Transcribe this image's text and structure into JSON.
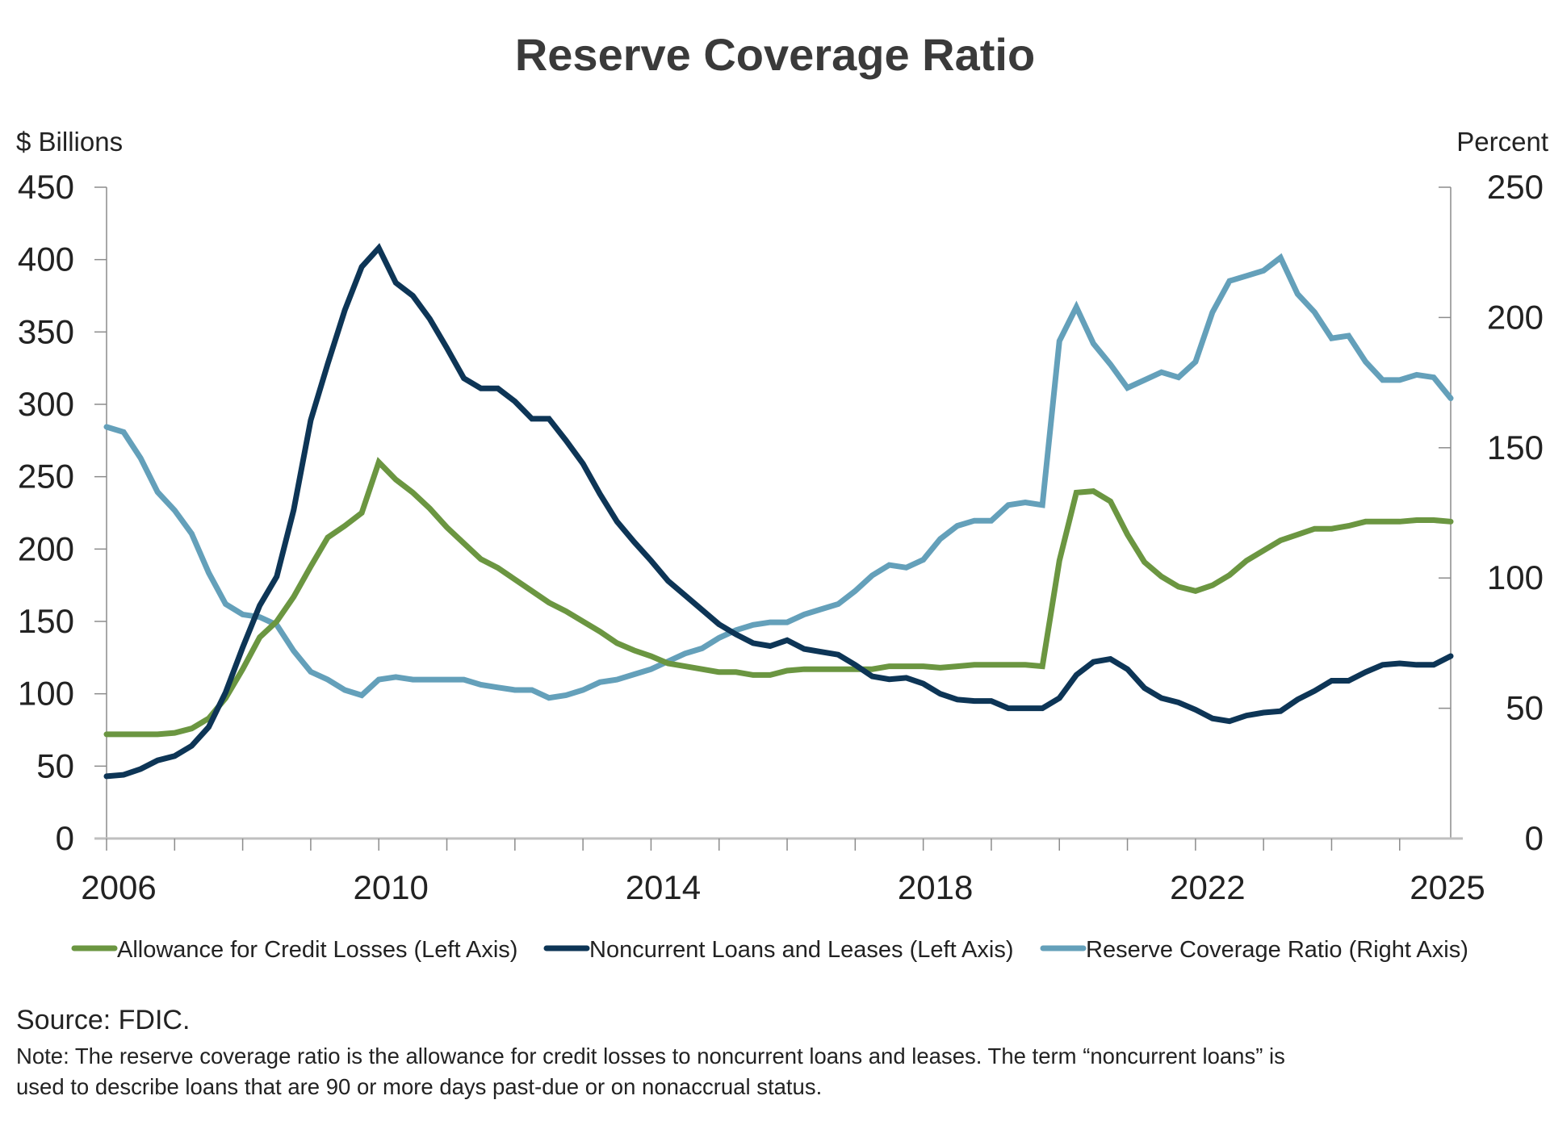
{
  "chart_data": {
    "type": "line",
    "title": "Reserve Coverage Ratio",
    "y_left_label": "$ Billions",
    "y_right_label": "Percent",
    "ylim_left": [
      0,
      450
    ],
    "ylim_right": [
      0,
      250
    ],
    "y_left_ticks": [
      0,
      50,
      100,
      150,
      200,
      250,
      300,
      350,
      400,
      450
    ],
    "y_right_ticks": [
      0,
      50,
      100,
      150,
      200,
      250
    ],
    "x_start": "2006Q1",
    "x_end": "2025Q2",
    "x_frequency": "quarterly",
    "x_tick_labels": [
      "2006",
      "2010",
      "2014",
      "2018",
      "2022",
      "2025"
    ],
    "x_tick_label_years": [
      2006,
      2010,
      2014,
      2018,
      2022,
      2025
    ],
    "x_minor_ticks_years": [
      2006,
      2007,
      2008,
      2009,
      2010,
      2011,
      2012,
      2013,
      2014,
      2015,
      2016,
      2017,
      2018,
      2019,
      2020,
      2021,
      2022,
      2023,
      2024,
      2025
    ],
    "grid": false,
    "legend_position": "bottom",
    "series": [
      {
        "name": "Allowance for Credit Losses (Left Axis)",
        "axis": "left",
        "color": "#6b9641",
        "values": [
          72,
          72,
          72,
          72,
          73,
          76,
          83,
          97,
          117,
          139,
          150,
          167,
          188,
          208,
          216,
          225,
          260,
          248,
          239,
          228,
          215,
          204,
          193,
          187,
          179,
          171,
          163,
          157,
          150,
          143,
          135,
          130,
          126,
          121,
          119,
          117,
          115,
          115,
          113,
          113,
          116,
          117,
          117,
          117,
          117,
          117,
          119,
          119,
          119,
          118,
          119,
          120,
          120,
          120,
          120,
          119,
          192,
          239,
          240,
          233,
          210,
          191,
          181,
          174,
          171,
          175,
          182,
          192,
          199,
          206,
          210,
          214,
          214,
          216,
          219,
          219,
          219,
          220,
          220,
          219
        ]
      },
      {
        "name": "Noncurrent Loans and Leases (Left Axis)",
        "axis": "left",
        "color": "#0d3556",
        "values": [
          43,
          44,
          48,
          54,
          57,
          64,
          77,
          101,
          132,
          161,
          181,
          227,
          289,
          328,
          365,
          395,
          408,
          384,
          375,
          359,
          339,
          318,
          311,
          311,
          302,
          290,
          290,
          275,
          259,
          238,
          219,
          205,
          192,
          178,
          168,
          158,
          148,
          141,
          135,
          133,
          137,
          131,
          129,
          127,
          120,
          112,
          110,
          111,
          107,
          100,
          96,
          95,
          95,
          90,
          90,
          90,
          97,
          113,
          122,
          124,
          117,
          104,
          97,
          94,
          89,
          83,
          81,
          85,
          87,
          88,
          96,
          102,
          109,
          109,
          115,
          120,
          121,
          120,
          120,
          126
        ]
      },
      {
        "name": "Reserve Coverage Ratio (Right Axis)",
        "axis": "right",
        "color": "#64a0ba",
        "values": [
          158,
          156,
          146,
          133,
          126,
          117,
          102,
          90,
          86,
          85,
          82,
          72,
          64,
          61,
          57,
          55,
          61,
          62,
          61,
          61,
          61,
          61,
          59,
          58,
          57,
          57,
          54,
          55,
          57,
          60,
          61,
          63,
          65,
          68,
          71,
          73,
          77,
          80,
          82,
          83,
          83,
          86,
          88,
          90,
          95,
          101,
          105,
          104,
          107,
          115,
          120,
          122,
          122,
          128,
          129,
          128,
          191,
          204,
          190,
          182,
          173,
          176,
          179,
          177,
          183,
          202,
          214,
          216,
          218,
          223,
          209,
          202,
          192,
          193,
          183,
          176,
          176,
          178,
          177,
          169
        ]
      }
    ]
  },
  "footer": {
    "source": "Source: FDIC.",
    "note": "Note: The reserve coverage ratio is the allowance for credit losses to noncurrent loans and leases. The term “noncurrent loans” is used to describe loans that are 90 or more days past-due or on nonaccrual status."
  }
}
